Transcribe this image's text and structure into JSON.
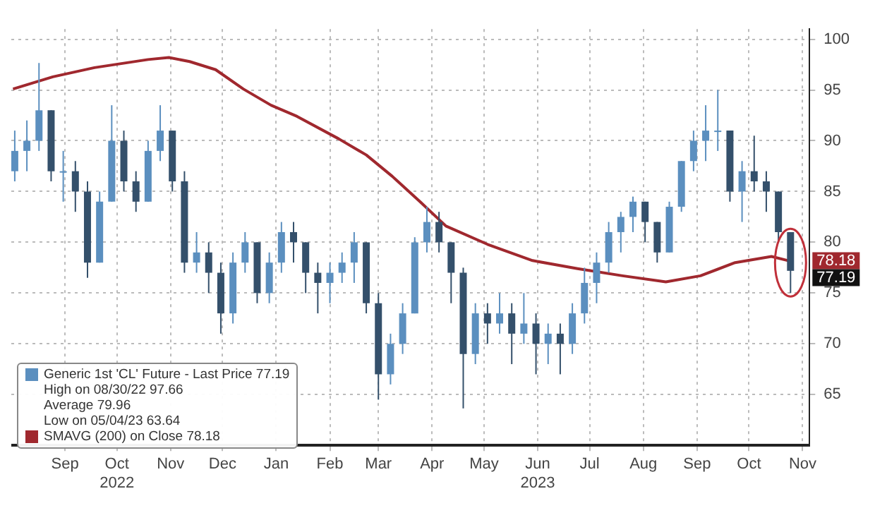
{
  "chart_data": {
    "type": "candlestick",
    "x": [
      "2022-08-17",
      "2022-08-24",
      "2022-08-31",
      "2022-09-07",
      "2022-09-14",
      "2022-09-21",
      "2022-09-28",
      "2022-10-05",
      "2022-10-12",
      "2022-10-19",
      "2022-10-26",
      "2022-11-02",
      "2022-11-09",
      "2022-11-16",
      "2022-11-23",
      "2022-11-30",
      "2022-12-07",
      "2022-12-14",
      "2022-12-21",
      "2022-12-28",
      "2023-01-04",
      "2023-01-11",
      "2023-01-18",
      "2023-01-25",
      "2023-02-01",
      "2023-02-08",
      "2023-02-15",
      "2023-02-22",
      "2023-03-01",
      "2023-03-08",
      "2023-03-15",
      "2023-03-22",
      "2023-03-29",
      "2023-04-05",
      "2023-04-12",
      "2023-04-19",
      "2023-04-26",
      "2023-05-03",
      "2023-05-10",
      "2023-05-17",
      "2023-05-24",
      "2023-05-31",
      "2023-06-07",
      "2023-06-14",
      "2023-06-21",
      "2023-06-28",
      "2023-07-05",
      "2023-07-12",
      "2023-07-19",
      "2023-07-26",
      "2023-08-02",
      "2023-08-09",
      "2023-08-16",
      "2023-08-23",
      "2023-08-30",
      "2023-09-06",
      "2023-09-13",
      "2023-09-20",
      "2023-09-27",
      "2023-10-04",
      "2023-10-11",
      "2023-10-18",
      "2023-10-25",
      "2023-11-01",
      "2023-11-08"
    ],
    "series": [
      {
        "name": "Generic 1st 'CL' Future - Last Price 77.19",
        "color": "#5b8fbf",
        "colors": [
          "#5b8fbf",
          "#5b8fbf",
          "#5b8fbf",
          "#34506b",
          "#5b8fbf",
          "#34506b",
          "#34506b",
          "#5b8fbf",
          "#5b8fbf",
          "#34506b",
          "#34506b",
          "#5b8fbf",
          "#5b8fbf",
          "#34506b",
          "#34506b",
          "#5b8fbf",
          "#34506b",
          "#34506b",
          "#5b8fbf",
          "#5b8fbf",
          "#34506b",
          "#5b8fbf",
          "#5b8fbf",
          "#34506b",
          "#34506b",
          "#34506b",
          "#5b8fbf",
          "#5b8fbf",
          "#5b8fbf",
          "#34506b",
          "#34506b",
          "#5b8fbf",
          "#5b8fbf",
          "#5b8fbf",
          "#5b8fbf",
          "#34506b",
          "#34506b",
          "#34506b",
          "#5b8fbf",
          "#34506b",
          "#5b8fbf",
          "#34506b",
          "#5b8fbf",
          "#34506b",
          "#5b8fbf",
          "#34506b",
          "#5b8fbf",
          "#5b8fbf",
          "#5b8fbf",
          "#5b8fbf",
          "#5b8fbf",
          "#5b8fbf",
          "#34506b",
          "#34506b",
          "#5b8fbf",
          "#5b8fbf",
          "#5b8fbf",
          "#5b8fbf",
          "#5b8fbf",
          "#34506b",
          "#5b8fbf",
          "#34506b",
          "#34506b",
          "#34506b",
          "#34506b"
        ],
        "ohlc": [
          [
            87,
            91,
            86,
            89
          ],
          [
            89,
            92,
            87,
            90
          ],
          [
            90,
            97.66,
            89,
            93
          ],
          [
            93,
            93,
            86,
            87
          ],
          [
            87,
            89,
            84,
            87
          ],
          [
            87,
            88,
            83,
            85
          ],
          [
            85,
            86,
            76.5,
            78
          ],
          [
            78,
            85,
            78,
            84
          ],
          [
            84,
            93.5,
            84,
            90
          ],
          [
            90,
            91,
            85,
            86
          ],
          [
            86,
            87,
            83,
            84
          ],
          [
            84,
            90,
            84,
            89
          ],
          [
            89,
            93.5,
            88,
            91
          ],
          [
            91,
            91,
            85,
            86
          ],
          [
            86,
            87,
            77,
            78
          ],
          [
            78,
            81,
            77,
            79
          ],
          [
            79,
            80,
            75,
            77
          ],
          [
            77,
            78,
            71,
            73
          ],
          [
            73,
            79,
            72,
            78
          ],
          [
            78,
            81,
            77,
            80
          ],
          [
            80,
            80,
            74,
            75
          ],
          [
            75,
            79,
            74,
            78
          ],
          [
            78,
            82,
            77,
            81
          ],
          [
            81,
            82,
            78,
            80
          ],
          [
            80,
            80,
            75,
            77
          ],
          [
            77,
            78,
            73,
            76
          ],
          [
            76,
            78,
            74,
            77
          ],
          [
            77,
            79,
            76,
            78
          ],
          [
            78,
            81,
            76,
            80
          ],
          [
            80,
            80,
            73,
            74
          ],
          [
            74,
            75,
            64.5,
            67
          ],
          [
            67,
            71,
            66,
            70
          ],
          [
            70,
            74,
            69,
            73
          ],
          [
            73,
            80.5,
            73,
            80
          ],
          [
            80,
            83.5,
            79,
            82
          ],
          [
            82,
            83,
            79,
            80
          ],
          [
            80,
            80,
            74,
            77
          ],
          [
            77,
            77.5,
            63.64,
            69
          ],
          [
            69,
            74,
            68,
            73
          ],
          [
            73,
            74,
            70,
            72
          ],
          [
            72,
            75,
            71,
            73
          ],
          [
            73,
            74,
            68,
            71
          ],
          [
            71,
            75,
            70,
            72
          ],
          [
            72,
            73,
            67,
            70
          ],
          [
            70,
            72,
            68,
            71
          ],
          [
            71,
            72,
            67,
            70
          ],
          [
            70,
            74,
            69,
            73
          ],
          [
            73,
            77.5,
            72,
            76
          ],
          [
            76,
            79,
            74,
            78
          ],
          [
            78,
            82,
            77,
            81
          ],
          [
            81,
            83,
            79,
            82.5
          ],
          [
            82.5,
            84.5,
            81,
            84
          ],
          [
            84,
            84,
            80,
            82
          ],
          [
            82,
            82,
            78,
            79
          ],
          [
            79,
            84,
            79,
            83.5
          ],
          [
            83.5,
            88,
            83,
            88
          ],
          [
            88,
            91,
            87,
            90
          ],
          [
            90,
            93.5,
            88,
            91
          ],
          [
            91,
            95,
            89,
            91
          ],
          [
            91,
            91,
            84,
            85
          ],
          [
            85,
            88,
            82,
            87
          ],
          [
            87,
            90.5,
            85,
            86
          ],
          [
            86,
            87,
            83,
            85
          ],
          [
            85,
            85,
            80,
            81
          ],
          [
            81,
            81,
            75,
            77.19
          ]
        ]
      },
      {
        "name": "SMAVG (200)  on Close 78.18",
        "type": "line",
        "color": "#a0282e",
        "x": [
          "2022-08-16",
          "2022-09-08",
          "2022-10-02",
          "2022-11-02",
          "2022-11-14",
          "2022-11-26",
          "2022-12-11",
          "2022-12-27",
          "2023-01-12",
          "2023-01-27",
          "2023-02-20",
          "2023-03-08",
          "2023-03-23",
          "2023-04-08",
          "2023-04-23",
          "2023-05-17",
          "2023-06-12",
          "2023-07-08",
          "2023-08-03",
          "2023-08-28",
          "2023-09-17",
          "2023-10-07",
          "2023-10-28",
          "2023-11-07"
        ],
        "values": [
          95.1,
          96.3,
          97.2,
          98.0,
          98.2,
          97.8,
          97.0,
          95.1,
          93.5,
          92.4,
          90.2,
          88.6,
          86.5,
          84.0,
          81.6,
          79.8,
          78.2,
          77.4,
          76.7,
          76.1,
          76.7,
          78.0,
          78.6,
          78.18
        ]
      }
    ],
    "xlim": [
      "2022-08-15",
      "2023-11-19"
    ],
    "xticks": [
      {
        "value": "2022-09-15",
        "label": "Sep"
      },
      {
        "value": "2022-10-15",
        "label": "Oct 2022"
      },
      {
        "value": "2022-11-15",
        "label": "Nov"
      },
      {
        "value": "2022-12-15",
        "label": "Dec"
      },
      {
        "value": "2023-01-15",
        "label": "Jan"
      },
      {
        "value": "2023-02-15",
        "label": "Feb"
      },
      {
        "value": "2023-03-15",
        "label": "Mar"
      },
      {
        "value": "2023-04-15",
        "label": "Apr"
      },
      {
        "value": "2023-05-15",
        "label": "May"
      },
      {
        "value": "2023-06-15",
        "label": "Jun 2023"
      },
      {
        "value": "2023-07-15",
        "label": "Jul"
      },
      {
        "value": "2023-08-15",
        "label": "Aug"
      },
      {
        "value": "2023-09-15",
        "label": "Sep"
      },
      {
        "value": "2023-10-15",
        "label": "Oct"
      },
      {
        "value": "2023-11-15",
        "label": "Nov"
      }
    ],
    "ylim": [
      60,
      101
    ],
    "yticks": [
      65,
      70,
      75,
      80,
      85,
      90,
      95,
      100
    ],
    "grid": true,
    "legend": "bottom left",
    "annotations": [
      "High on 08/30/22 97.66",
      "Average 79.96",
      "Low on 05/04/23 63.64",
      {
        "text": "78.18",
        "y": 78.18
      },
      "77.19"
    ]
  }
}
